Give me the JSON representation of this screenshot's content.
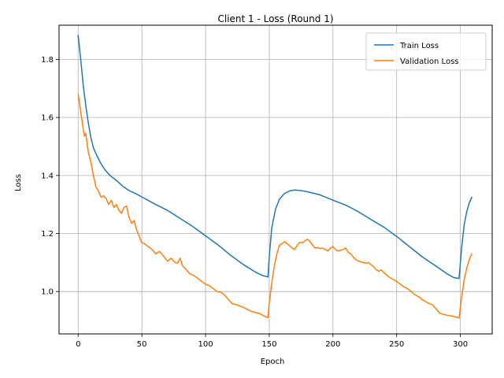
{
  "chart_data": {
    "type": "line",
    "title": "Client 1 - Loss (Round 1)",
    "xlabel": "Epoch",
    "ylabel": "Loss",
    "xlim": [
      -15,
      325
    ],
    "ylim": [
      0.854,
      1.918
    ],
    "x_ticks": [
      0,
      50,
      100,
      150,
      200,
      250,
      300
    ],
    "y_ticks": [
      1.0,
      1.2,
      1.4,
      1.6,
      1.8
    ],
    "grid": true,
    "legend_position": "upper right",
    "series": [
      {
        "name": "Train Loss",
        "color": "#1f77b4",
        "points": [
          [
            0,
            1.883
          ],
          [
            2,
            1.8
          ],
          [
            4,
            1.71
          ],
          [
            6,
            1.64
          ],
          [
            8,
            1.58
          ],
          [
            10,
            1.53
          ],
          [
            12,
            1.495
          ],
          [
            15,
            1.465
          ],
          [
            18,
            1.44
          ],
          [
            21,
            1.42
          ],
          [
            25,
            1.4
          ],
          [
            30,
            1.383
          ],
          [
            35,
            1.363
          ],
          [
            40,
            1.348
          ],
          [
            45,
            1.338
          ],
          [
            50,
            1.326
          ],
          [
            60,
            1.302
          ],
          [
            70,
            1.28
          ],
          [
            80,
            1.252
          ],
          [
            90,
            1.224
          ],
          [
            100,
            1.192
          ],
          [
            110,
            1.16
          ],
          [
            120,
            1.124
          ],
          [
            130,
            1.092
          ],
          [
            140,
            1.065
          ],
          [
            145,
            1.055
          ],
          [
            149,
            1.05
          ],
          [
            150,
            1.12
          ],
          [
            152,
            1.22
          ],
          [
            155,
            1.285
          ],
          [
            158,
            1.318
          ],
          [
            162,
            1.338
          ],
          [
            166,
            1.347
          ],
          [
            170,
            1.35
          ],
          [
            175,
            1.348
          ],
          [
            180,
            1.344
          ],
          [
            190,
            1.333
          ],
          [
            200,
            1.315
          ],
          [
            210,
            1.298
          ],
          [
            220,
            1.275
          ],
          [
            230,
            1.248
          ],
          [
            240,
            1.222
          ],
          [
            250,
            1.19
          ],
          [
            260,
            1.155
          ],
          [
            270,
            1.12
          ],
          [
            280,
            1.09
          ],
          [
            290,
            1.06
          ],
          [
            295,
            1.048
          ],
          [
            299,
            1.045
          ],
          [
            301,
            1.15
          ],
          [
            303,
            1.23
          ],
          [
            305,
            1.275
          ],
          [
            307,
            1.305
          ],
          [
            309,
            1.325
          ]
        ]
      },
      {
        "name": "Validation Loss",
        "color": "#ff7f0e",
        "points": [
          [
            0,
            1.68
          ],
          [
            2,
            1.62
          ],
          [
            4,
            1.56
          ],
          [
            5,
            1.535
          ],
          [
            6,
            1.545
          ],
          [
            7,
            1.51
          ],
          [
            8,
            1.48
          ],
          [
            10,
            1.445
          ],
          [
            12,
            1.4
          ],
          [
            14,
            1.36
          ],
          [
            16,
            1.345
          ],
          [
            18,
            1.325
          ],
          [
            20,
            1.33
          ],
          [
            22,
            1.32
          ],
          [
            24,
            1.3
          ],
          [
            26,
            1.315
          ],
          [
            28,
            1.29
          ],
          [
            30,
            1.3
          ],
          [
            32,
            1.28
          ],
          [
            34,
            1.27
          ],
          [
            36,
            1.29
          ],
          [
            38,
            1.295
          ],
          [
            40,
            1.255
          ],
          [
            42,
            1.235
          ],
          [
            44,
            1.245
          ],
          [
            46,
            1.21
          ],
          [
            48,
            1.19
          ],
          [
            50,
            1.168
          ],
          [
            52,
            1.165
          ],
          [
            55,
            1.155
          ],
          [
            58,
            1.145
          ],
          [
            61,
            1.13
          ],
          [
            64,
            1.138
          ],
          [
            67,
            1.122
          ],
          [
            70,
            1.105
          ],
          [
            73,
            1.115
          ],
          [
            76,
            1.1
          ],
          [
            78,
            1.098
          ],
          [
            80,
            1.115
          ],
          [
            82,
            1.088
          ],
          [
            85,
            1.075
          ],
          [
            88,
            1.06
          ],
          [
            91,
            1.055
          ],
          [
            94,
            1.045
          ],
          [
            97,
            1.035
          ],
          [
            100,
            1.025
          ],
          [
            103,
            1.02
          ],
          [
            106,
            1.01
          ],
          [
            109,
            1.0
          ],
          [
            112,
            0.998
          ],
          [
            115,
            0.988
          ],
          [
            118,
            0.972
          ],
          [
            121,
            0.958
          ],
          [
            124,
            0.955
          ],
          [
            127,
            0.95
          ],
          [
            130,
            0.945
          ],
          [
            133,
            0.938
          ],
          [
            136,
            0.932
          ],
          [
            139,
            0.928
          ],
          [
            142,
            0.925
          ],
          [
            145,
            0.918
          ],
          [
            148,
            0.912
          ],
          [
            149,
            0.91
          ],
          [
            150,
            0.96
          ],
          [
            152,
            1.03
          ],
          [
            154,
            1.09
          ],
          [
            156,
            1.13
          ],
          [
            158,
            1.16
          ],
          [
            160,
            1.165
          ],
          [
            162,
            1.172
          ],
          [
            164,
            1.165
          ],
          [
            166,
            1.158
          ],
          [
            168,
            1.15
          ],
          [
            170,
            1.145
          ],
          [
            172,
            1.16
          ],
          [
            174,
            1.17
          ],
          [
            176,
            1.168
          ],
          [
            178,
            1.175
          ],
          [
            180,
            1.18
          ],
          [
            182,
            1.172
          ],
          [
            184,
            1.16
          ],
          [
            186,
            1.15
          ],
          [
            188,
            1.152
          ],
          [
            190,
            1.148
          ],
          [
            192,
            1.15
          ],
          [
            194,
            1.145
          ],
          [
            196,
            1.14
          ],
          [
            198,
            1.15
          ],
          [
            200,
            1.155
          ],
          [
            202,
            1.145
          ],
          [
            204,
            1.14
          ],
          [
            206,
            1.142
          ],
          [
            208,
            1.145
          ],
          [
            210,
            1.15
          ],
          [
            212,
            1.135
          ],
          [
            214,
            1.13
          ],
          [
            216,
            1.118
          ],
          [
            218,
            1.11
          ],
          [
            220,
            1.105
          ],
          [
            222,
            1.102
          ],
          [
            224,
            1.1
          ],
          [
            226,
            1.098
          ],
          [
            228,
            1.1
          ],
          [
            230,
            1.092
          ],
          [
            232,
            1.085
          ],
          [
            234,
            1.075
          ],
          [
            236,
            1.07
          ],
          [
            238,
            1.075
          ],
          [
            240,
            1.065
          ],
          [
            242,
            1.058
          ],
          [
            244,
            1.05
          ],
          [
            246,
            1.045
          ],
          [
            248,
            1.04
          ],
          [
            250,
            1.035
          ],
          [
            252,
            1.028
          ],
          [
            254,
            1.022
          ],
          [
            256,
            1.015
          ],
          [
            258,
            1.012
          ],
          [
            260,
            1.005
          ],
          [
            262,
            0.998
          ],
          [
            264,
            0.99
          ],
          [
            266,
            0.985
          ],
          [
            268,
            0.98
          ],
          [
            270,
            0.972
          ],
          [
            272,
            0.968
          ],
          [
            274,
            0.962
          ],
          [
            276,
            0.958
          ],
          [
            278,
            0.955
          ],
          [
            280,
            0.945
          ],
          [
            282,
            0.935
          ],
          [
            284,
            0.925
          ],
          [
            286,
            0.922
          ],
          [
            288,
            0.92
          ],
          [
            290,
            0.918
          ],
          [
            292,
            0.916
          ],
          [
            294,
            0.915
          ],
          [
            296,
            0.913
          ],
          [
            298,
            0.91
          ],
          [
            299,
            0.908
          ],
          [
            301,
            0.98
          ],
          [
            303,
            1.04
          ],
          [
            305,
            1.08
          ],
          [
            307,
            1.11
          ],
          [
            309,
            1.13
          ]
        ]
      }
    ]
  }
}
